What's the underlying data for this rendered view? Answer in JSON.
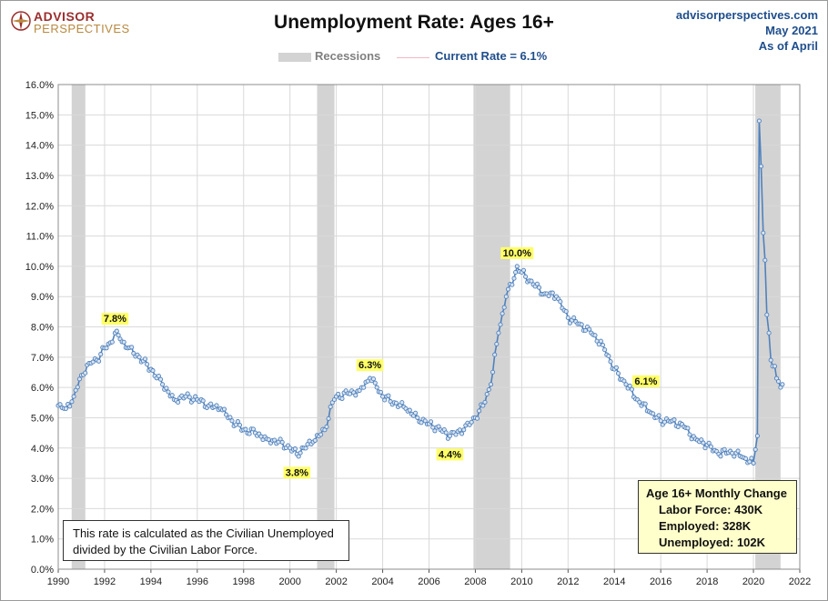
{
  "header": {
    "logo_line1": "ADVISOR",
    "logo_line2": "PERSPECTIVES",
    "title": "Unemployment Rate: Ages 16+",
    "source_line1": "advisorperspectives.com",
    "source_line2": "May 2021",
    "source_line3": "As of April"
  },
  "legend": {
    "recessions_label": "Recessions",
    "current_label": "Current Rate = 6.1%"
  },
  "note_text": "This rate is calculated as the Civilian Unemployed divided by the Civilian Labor Force.",
  "change_box": {
    "title": "Age 16+ Monthly Change",
    "labor_force": "Labor Force:  430K",
    "employed": "Employed:  328K",
    "unemployed": "Unemployed:  102K"
  },
  "colors": {
    "line": "#4f81bd",
    "marker_fill": "#dbe5f1",
    "recession": "#d3d3d3",
    "annotation_bg": "#ffff66",
    "grid": "#d9d9d9"
  },
  "chart_data": {
    "type": "line",
    "title": "Unemployment Rate: Ages 16+",
    "x_range": [
      1990,
      2022
    ],
    "x_ticks": [
      "1990",
      "1992",
      "1994",
      "1996",
      "1998",
      "2000",
      "2002",
      "2004",
      "2006",
      "2008",
      "2010",
      "2012",
      "2014",
      "2016",
      "2018",
      "2020",
      "2022"
    ],
    "ylim": [
      0,
      16
    ],
    "y_ticks": [
      "0.0%",
      "1.0%",
      "2.0%",
      "3.0%",
      "4.0%",
      "5.0%",
      "6.0%",
      "7.0%",
      "8.0%",
      "9.0%",
      "10.0%",
      "11.0%",
      "12.0%",
      "13.0%",
      "14.0%",
      "15.0%",
      "16.0%"
    ],
    "grid": true,
    "recessions": [
      [
        1990.58,
        1991.17
      ],
      [
        2001.17,
        2001.92
      ],
      [
        2007.92,
        2009.5
      ],
      [
        2020.08,
        2021.17
      ]
    ],
    "annotations": [
      {
        "label": "7.8%",
        "x": 1992.45,
        "y": 7.8
      },
      {
        "label": "3.8%",
        "x": 2000.3,
        "y": 3.8
      },
      {
        "label": "6.3%",
        "x": 2003.45,
        "y": 6.3
      },
      {
        "label": "4.4%",
        "x": 2006.9,
        "y": 4.4
      },
      {
        "label": "10.0%",
        "x": 2009.8,
        "y": 10.0
      },
      {
        "label": "6.1%",
        "x": 2021.25,
        "y": 6.1
      }
    ],
    "series": [
      {
        "values": [
          [
            1990.0,
            5.4
          ],
          [
            1990.33,
            5.3
          ],
          [
            1990.67,
            5.7
          ],
          [
            1991.0,
            6.4
          ],
          [
            1991.33,
            6.8
          ],
          [
            1991.67,
            6.9
          ],
          [
            1992.0,
            7.3
          ],
          [
            1992.33,
            7.5
          ],
          [
            1992.45,
            7.8
          ],
          [
            1992.67,
            7.6
          ],
          [
            1993.0,
            7.3
          ],
          [
            1993.5,
            7.0
          ],
          [
            1994.0,
            6.6
          ],
          [
            1994.5,
            6.1
          ],
          [
            1995.0,
            5.6
          ],
          [
            1995.5,
            5.7
          ],
          [
            1996.0,
            5.6
          ],
          [
            1996.5,
            5.4
          ],
          [
            1997.0,
            5.3
          ],
          [
            1997.5,
            4.9
          ],
          [
            1998.0,
            4.6
          ],
          [
            1998.5,
            4.5
          ],
          [
            1999.0,
            4.3
          ],
          [
            1999.5,
            4.2
          ],
          [
            2000.0,
            4.0
          ],
          [
            2000.3,
            3.8
          ],
          [
            2000.6,
            4.0
          ],
          [
            2001.0,
            4.2
          ],
          [
            2001.5,
            4.6
          ],
          [
            2001.83,
            5.5
          ],
          [
            2002.0,
            5.7
          ],
          [
            2002.5,
            5.8
          ],
          [
            2003.0,
            5.9
          ],
          [
            2003.45,
            6.3
          ],
          [
            2003.75,
            6.0
          ],
          [
            2004.0,
            5.7
          ],
          [
            2004.5,
            5.5
          ],
          [
            2005.0,
            5.3
          ],
          [
            2005.5,
            5.0
          ],
          [
            2006.0,
            4.8
          ],
          [
            2006.5,
            4.6
          ],
          [
            2006.9,
            4.4
          ],
          [
            2007.5,
            4.6
          ],
          [
            2008.0,
            5.0
          ],
          [
            2008.33,
            5.4
          ],
          [
            2008.67,
            6.1
          ],
          [
            2009.0,
            7.8
          ],
          [
            2009.33,
            9.0
          ],
          [
            2009.67,
            9.6
          ],
          [
            2009.8,
            10.0
          ],
          [
            2010.0,
            9.8
          ],
          [
            2010.5,
            9.4
          ],
          [
            2011.0,
            9.1
          ],
          [
            2011.5,
            9.0
          ],
          [
            2012.0,
            8.3
          ],
          [
            2012.5,
            8.1
          ],
          [
            2013.0,
            7.8
          ],
          [
            2013.5,
            7.4
          ],
          [
            2014.0,
            6.6
          ],
          [
            2014.5,
            6.1
          ],
          [
            2015.0,
            5.6
          ],
          [
            2015.5,
            5.2
          ],
          [
            2016.0,
            4.9
          ],
          [
            2016.5,
            4.9
          ],
          [
            2017.0,
            4.7
          ],
          [
            2017.5,
            4.3
          ],
          [
            2018.0,
            4.1
          ],
          [
            2018.5,
            3.8
          ],
          [
            2019.0,
            3.9
          ],
          [
            2019.5,
            3.7
          ],
          [
            2020.0,
            3.5
          ],
          [
            2020.17,
            4.4
          ],
          [
            2020.25,
            14.8
          ],
          [
            2020.33,
            13.3
          ],
          [
            2020.42,
            11.1
          ],
          [
            2020.5,
            10.2
          ],
          [
            2020.58,
            8.4
          ],
          [
            2020.67,
            7.8
          ],
          [
            2020.75,
            6.9
          ],
          [
            2020.83,
            6.7
          ],
          [
            2020.92,
            6.7
          ],
          [
            2021.0,
            6.3
          ],
          [
            2021.08,
            6.2
          ],
          [
            2021.17,
            6.0
          ],
          [
            2021.25,
            6.1
          ]
        ]
      }
    ]
  }
}
